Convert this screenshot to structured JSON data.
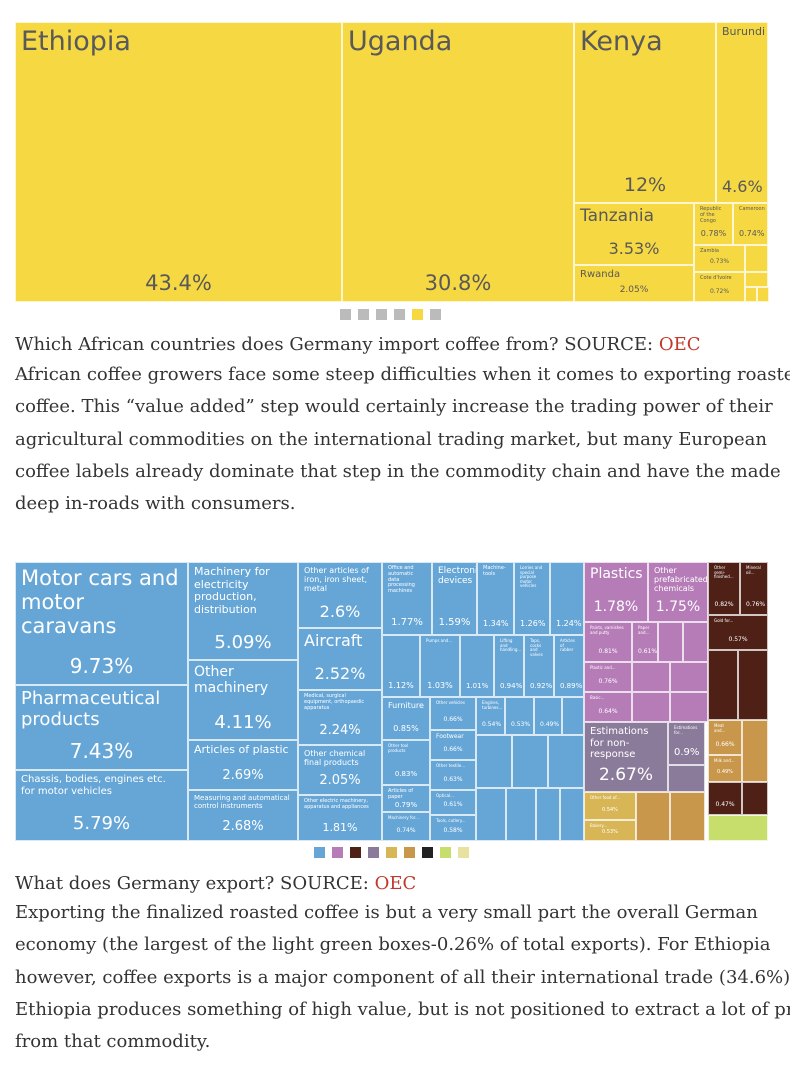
{
  "figures": [
    {
      "tiles": [
        {
          "label": "Ethiopia",
          "value": "43.4%"
        },
        {
          "label": "Uganda",
          "value": "30.8%"
        },
        {
          "label": "Kenya",
          "value": "12%"
        },
        {
          "label": "Burundi",
          "value": "4.6%"
        },
        {
          "label": "Tanzania",
          "value": "3.53%"
        },
        {
          "label": "Rwanda",
          "value": "2.05%"
        },
        {
          "label": "Republic of the Congo",
          "value": "0.78%"
        },
        {
          "label": "Cameroon",
          "value": "0.74%"
        },
        {
          "label": "Zambia",
          "value": "0.73%"
        },
        {
          "label": "Cote d'Ivoire",
          "value": "0.72%"
        }
      ],
      "caption": {
        "text": "Which African countries does Germany import coffee from? SOURCE: ",
        "link": "OEC"
      },
      "paragraph": [
        "African coffee growers face some steep difficulties when it comes to exporting roasted",
        "coffee.  This “value added” step would certainly increase the trading power of their",
        "agricultural commodities on the international trading market, but many European",
        "coffee labels already dominate that step in the commodity chain and have the made",
        "deep in-roads with consumers."
      ]
    },
    {
      "tiles": [
        {
          "label": "Motor cars and motor caravans",
          "value": "9.73%"
        },
        {
          "label": "Pharmaceutical products",
          "value": "7.43%"
        },
        {
          "label": "Chassis, bodies, engines etc. for motor vehicles",
          "value": "5.79%"
        },
        {
          "label": "Machinery for electricity production, distribution",
          "value": "5.09%"
        },
        {
          "label": "Other machinery",
          "value": "4.11%"
        },
        {
          "label": "Articles of plastic",
          "value": "2.69%"
        },
        {
          "label": "Measuring and automatical control instruments",
          "value": "2.68%"
        },
        {
          "label": "Other articles of iron, iron sheet, metal",
          "value": "2.6%"
        },
        {
          "label": "Aircraft",
          "value": "2.52%"
        },
        {
          "label": "Medical, surgical equipment, orthopaedic apparatus",
          "value": "2.24%"
        },
        {
          "label": "Other chemical final products",
          "value": "2.05%"
        },
        {
          "label": "Other electric machinery, apparatus and appliances",
          "value": "1.81%"
        },
        {
          "label": "Office and automatic data processing machines",
          "value": "1.77%"
        },
        {
          "label": "Electronic devices",
          "value": "1.59%"
        },
        {
          "label": "Machine-tools",
          "value": "1.34%"
        },
        {
          "label": "Lorries and special purpose motor vehicles",
          "value": "1.26%"
        },
        {
          "value": "1.24%"
        },
        {
          "value": "1.12%"
        },
        {
          "label": "Pumps and...",
          "value": "1.03%"
        },
        {
          "value": "1.01%"
        },
        {
          "label": "Lifting and handling...",
          "value": "0.94%"
        },
        {
          "label": "Taps, cocks and valves",
          "value": "0.92%"
        },
        {
          "label": "Articles of rubber",
          "value": "0.89%"
        },
        {
          "label": "Furniture",
          "value": "0.85%"
        },
        {
          "label": "Other vehicles",
          "value": "0.66%"
        },
        {
          "label": "Engines, turbines...",
          "value": "0.54%"
        },
        {
          "value": "0.53%"
        },
        {
          "value": "0.49%"
        },
        {
          "label": "Other tool products",
          "value": "0.83%"
        },
        {
          "label": "Footwear",
          "value": "0.66%"
        },
        {
          "label": "Other textile...",
          "value": "0.63%"
        },
        {
          "label": "Articles of paper",
          "value": "0.79%"
        },
        {
          "label": "Optical...",
          "value": "0.61%"
        },
        {
          "label": "Machinery for...",
          "value": "0.74%"
        },
        {
          "label": "Tools, cutlery...",
          "value": "0.58%"
        },
        {
          "label": "Plastics",
          "value": "1.78%"
        },
        {
          "label": "Other prefabricated chemicals",
          "value": "1.75%"
        },
        {
          "label": "Paints, varnishes and putty",
          "value": "0.81%"
        },
        {
          "label": "Paper and...",
          "value": "0.61%"
        },
        {
          "label": "Plastic and...",
          "value": "0.76%"
        },
        {
          "label": "Basic...",
          "value": "0.64%"
        },
        {
          "label": "Estimations for non-response",
          "value": "2.67%"
        },
        {
          "label": "Estimations for...",
          "value": "0.9%"
        },
        {
          "label": "Other food of...",
          "value": "0.54%"
        },
        {
          "label": "Bakery...",
          "value": "0.53%"
        },
        {
          "label": "Other semi-finished...",
          "value": "0.82%"
        },
        {
          "label": "Mineral oil...",
          "value": "0.76%"
        },
        {
          "label": "Gold for...",
          "value": "0.57%"
        },
        {
          "label": "Meat and...",
          "value": "0.66%"
        },
        {
          "label": "Milk and...",
          "value": "0.49%"
        },
        {
          "value": "0.47%"
        }
      ],
      "caption": {
        "text": "What does Germany export? SOURCE: ",
        "link": "OEC"
      },
      "paragraph": [
        "Exporting the finalized roasted coffee is but a very small part the overall German",
        "economy (the largest of the light green boxes-0.26% of total exports). For Ethiopia",
        "however, coffee exports is a major component of all their international trade (34.6%).",
        "Ethiopia produces something of high value, but is not positioned to extract a lot of profit",
        "from that commodity."
      ]
    }
  ]
}
